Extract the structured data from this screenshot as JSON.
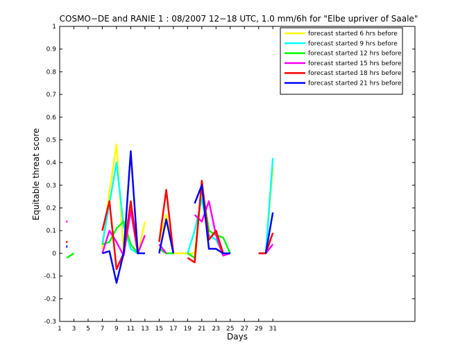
{
  "chart_data": {
    "type": "line",
    "title": "COSMO−DE and RANIE 1 : 08/2007 12−18 UTC, 1.0 mm/6h for \"Elbe upriver of Saale\"",
    "xlabel": "Days",
    "ylabel": "Equitable threat score",
    "xlim": [
      1,
      51
    ],
    "ylim": [
      -0.3,
      1
    ],
    "xticks": [
      1,
      3,
      5,
      7,
      9,
      11,
      13,
      15,
      17,
      19,
      21,
      23,
      25,
      27,
      29,
      31
    ],
    "yticks": [
      -0.3,
      -0.2,
      -0.1,
      0,
      0.1,
      0.2,
      0.3,
      0.4,
      0.5,
      0.6,
      0.7,
      0.8,
      0.9,
      1
    ],
    "legend_position": "top-right",
    "series": [
      {
        "name": "forecast started 6 hrs before",
        "color": "#ffff00",
        "x": [
          7,
          8,
          9,
          10,
          11,
          12,
          13,
          15,
          16,
          17,
          18,
          19,
          20,
          21,
          22,
          23,
          24,
          25,
          29,
          30,
          31
        ],
        "y": [
          0.02,
          0.27,
          0.48,
          0.0,
          0.21,
          0.0,
          0.14,
          0.05,
          0.17,
          0.0,
          0.0,
          0.0,
          0.0,
          0.28,
          0.06,
          0.1,
          0.0,
          0.0,
          0.0,
          0.0,
          0.38
        ]
      },
      {
        "name": "forecast started 9 hrs before",
        "color": "#00ffff",
        "x": [
          7,
          8,
          9,
          10,
          11,
          12,
          15,
          16,
          17,
          19,
          20,
          21,
          22,
          23,
          24,
          29,
          30,
          31
        ],
        "y": [
          0.04,
          0.22,
          0.4,
          0.12,
          0.02,
          0.0,
          0.04,
          0.0,
          0.0,
          0.0,
          0.1,
          0.24,
          0.08,
          0.06,
          0.0,
          0.0,
          0.0,
          0.42
        ]
      },
      {
        "name": "forecast started 12 hrs before",
        "color": "#00ff00",
        "x": [
          2,
          3,
          7,
          8,
          9,
          10,
          11,
          12,
          15,
          16,
          17,
          19,
          20,
          21,
          22,
          23,
          24,
          25,
          27
        ],
        "y": [
          -0.02,
          0.0,
          0.04,
          0.05,
          0.11,
          0.14,
          0.04,
          0.0,
          0.02,
          0.0,
          0.0,
          0.0,
          -0.02,
          0.3,
          0.1,
          0.08,
          0.07,
          0.0,
          0.0
        ]
      },
      {
        "name": "forecast started 15 hrs before",
        "color": "#ff00ff",
        "x": [
          7,
          8,
          9,
          10,
          11,
          12,
          13,
          15,
          16,
          20,
          21,
          22,
          23,
          24,
          25,
          29,
          30,
          31
        ],
        "y": [
          0.0,
          0.1,
          0.05,
          -0.01,
          0.19,
          0.0,
          0.08,
          0.04,
          0.0,
          0.17,
          0.14,
          0.23,
          0.08,
          -0.01,
          0.0,
          0.0,
          0.0,
          0.04
        ]
      },
      {
        "name": "forecast started 18 hrs before",
        "color": "#ff0000",
        "x": [
          7,
          8,
          9,
          10,
          11,
          12,
          15,
          16,
          17,
          19,
          20,
          21,
          22,
          23,
          24,
          29,
          30,
          31
        ],
        "y": [
          0.1,
          0.23,
          -0.07,
          0.0,
          0.23,
          0.0,
          0.05,
          0.28,
          0.0,
          -0.02,
          -0.04,
          0.32,
          0.06,
          0.1,
          0.0,
          0.0,
          0.0,
          0.09
        ]
      },
      {
        "name": "forecast started 21 hrs before",
        "color": "#0000ff",
        "x": [
          7,
          8,
          9,
          10,
          11,
          12,
          13,
          15,
          16,
          17,
          20,
          21,
          22,
          23,
          24,
          25,
          30,
          31
        ],
        "y": [
          0.0,
          0.01,
          -0.13,
          0.0,
          0.45,
          0.0,
          0.0,
          0.0,
          0.15,
          0.0,
          0.22,
          0.3,
          0.02,
          0.02,
          0.0,
          0.0,
          0.0,
          0.18
        ]
      }
    ],
    "isolated_points": [
      {
        "color": "#ff00ff",
        "x": 2,
        "y": 0.14
      },
      {
        "color": "#ff0000",
        "x": 2,
        "y": 0.05
      },
      {
        "color": "#0000ff",
        "x": 2,
        "y": 0.03
      }
    ]
  }
}
